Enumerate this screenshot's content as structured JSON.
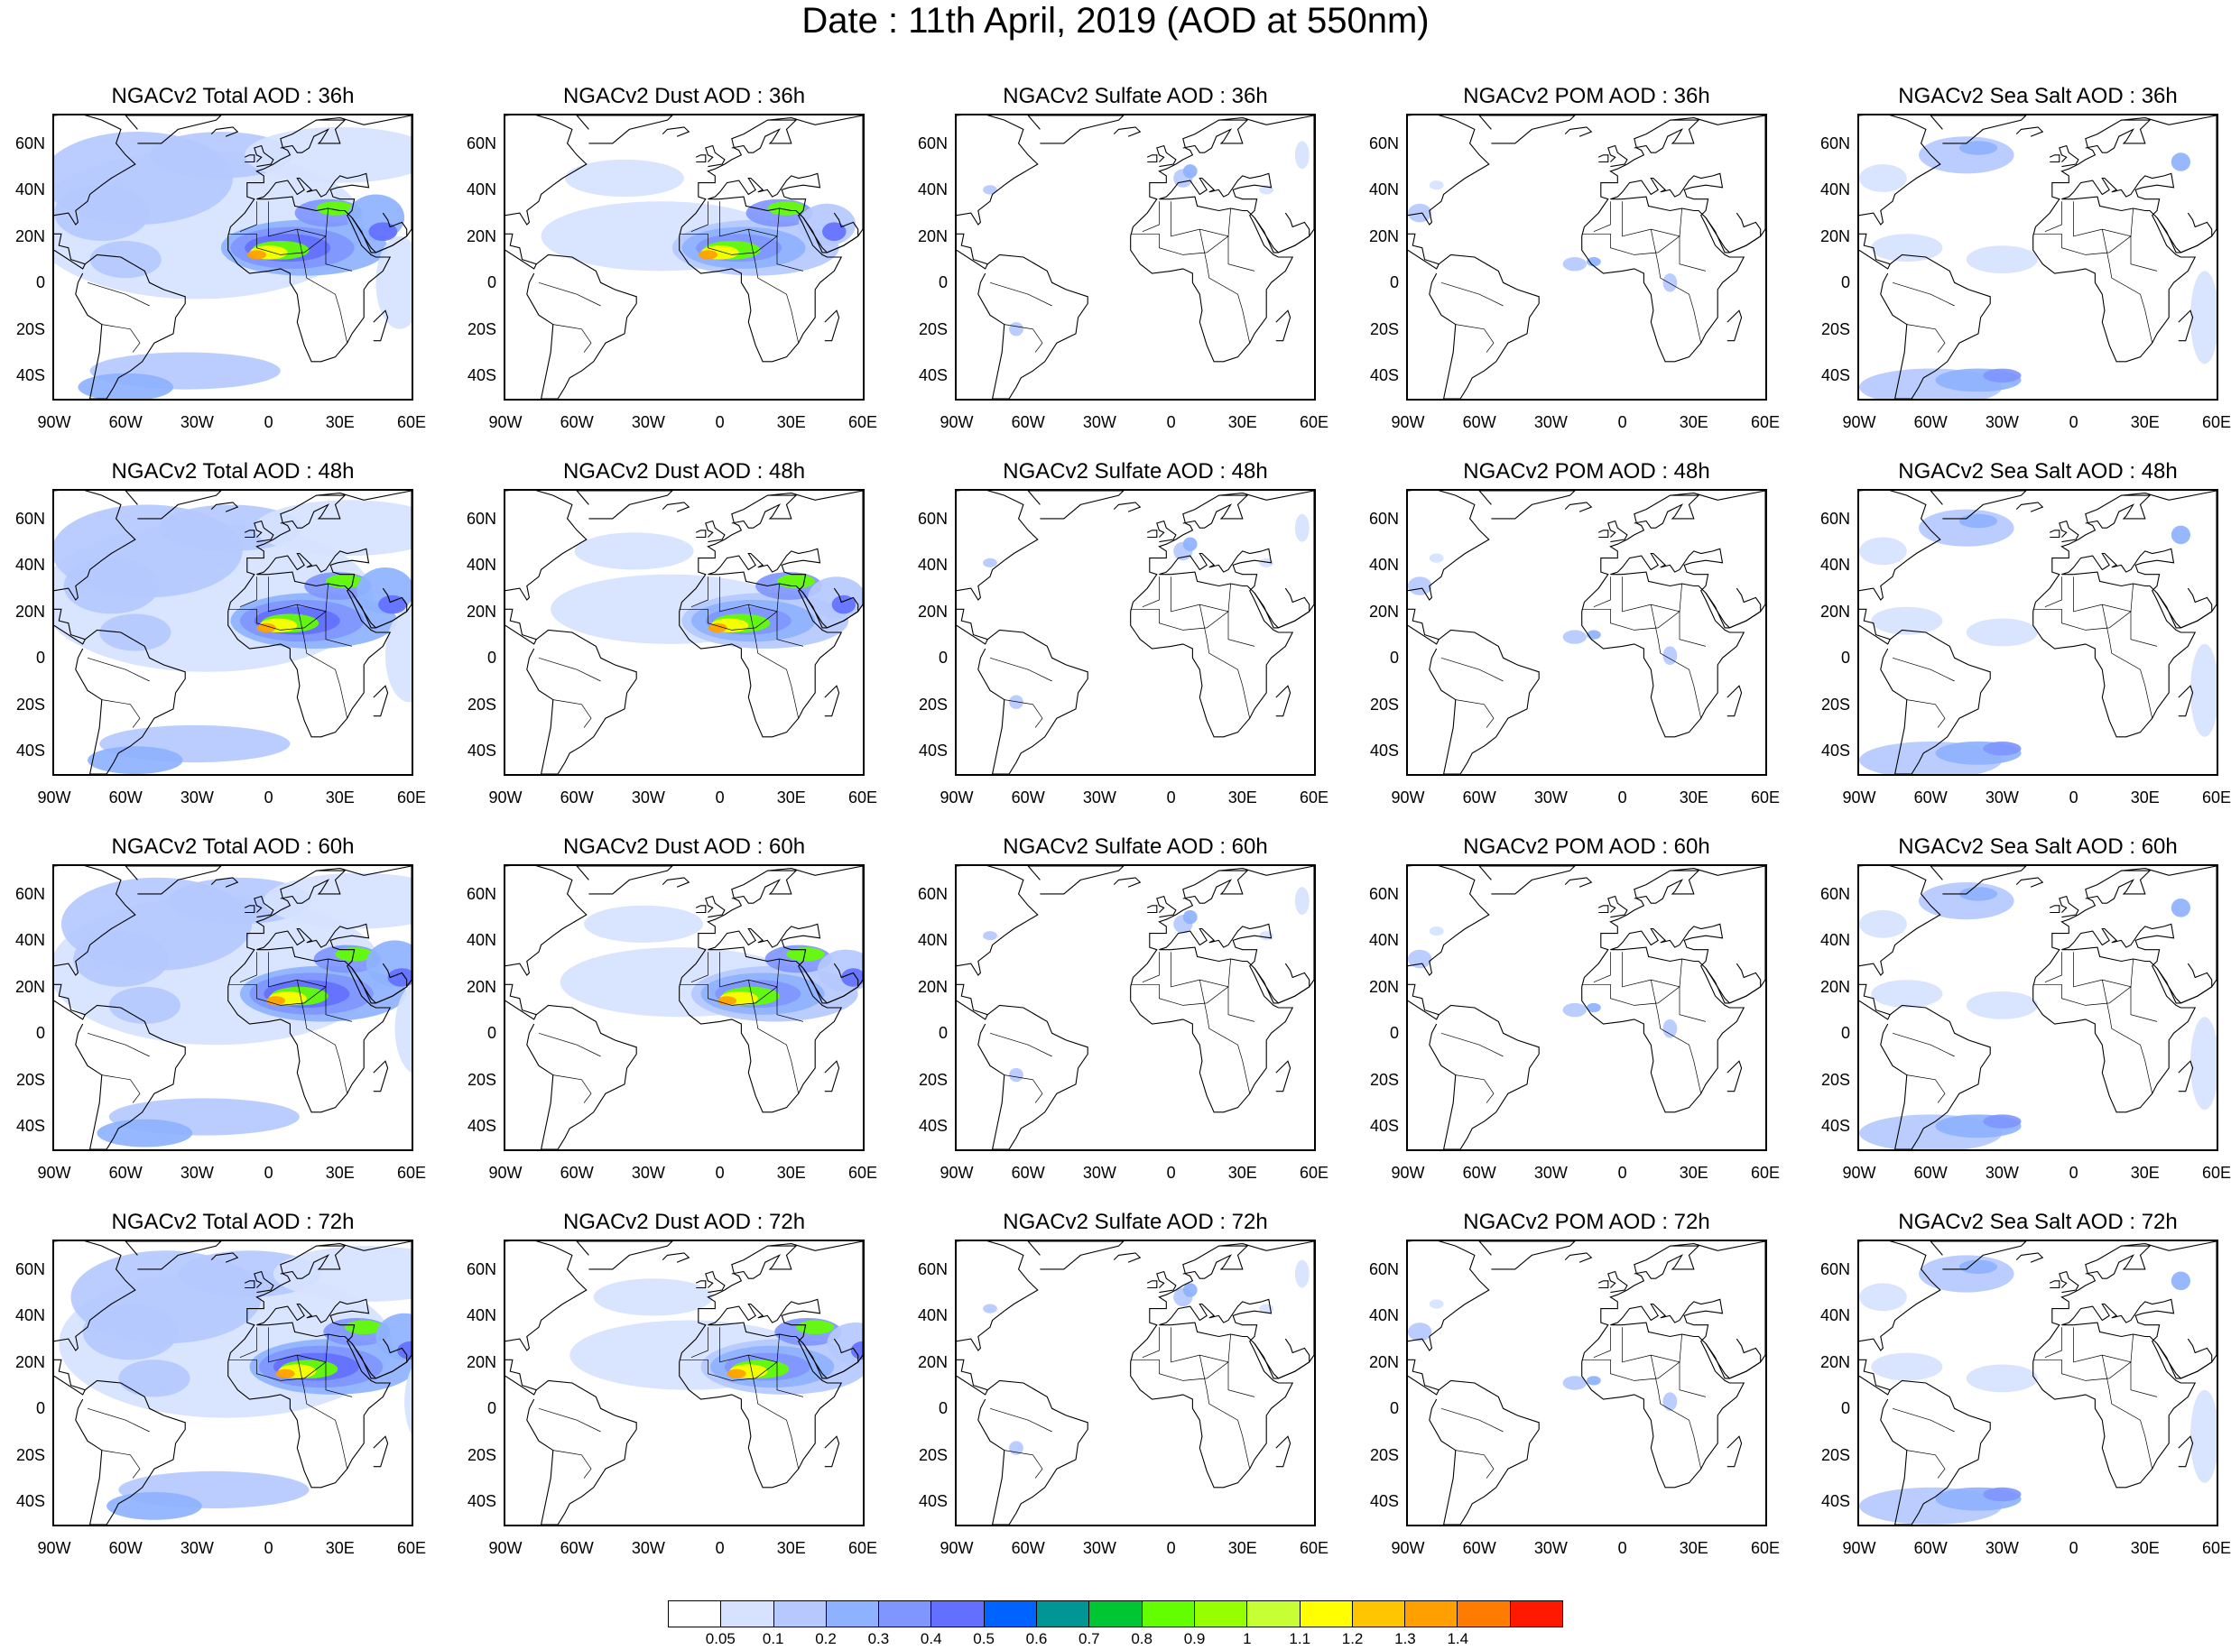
{
  "title": "Date : 11th April, 2019 (AOD at 550nm)",
  "map": {
    "lat_labels": [
      "60N",
      "40N",
      "20N",
      "0",
      "20S",
      "40S"
    ],
    "lat_values": [
      60,
      40,
      20,
      0,
      -20,
      -40
    ],
    "lon_labels": [
      "90W",
      "60W",
      "30W",
      "0",
      "30E",
      "60E"
    ],
    "lon_values": [
      -90,
      -60,
      -30,
      0,
      30,
      60
    ],
    "lon_range": [
      -90,
      60
    ],
    "lat_range": [
      -50,
      72
    ]
  },
  "panels": [
    [
      {
        "title": "NGACv2 Total AOD : 36h",
        "species": "total"
      },
      {
        "title": "NGACv2 Dust AOD : 36h",
        "species": "dust"
      },
      {
        "title": "NGACv2 Sulfate AOD : 36h",
        "species": "sulfate"
      },
      {
        "title": "NGACv2 POM AOD : 36h",
        "species": "pom"
      },
      {
        "title": "NGACv2 Sea Salt AOD : 36h",
        "species": "seasalt"
      }
    ],
    [
      {
        "title": "NGACv2 Total AOD : 48h",
        "species": "total"
      },
      {
        "title": "NGACv2 Dust AOD : 48h",
        "species": "dust"
      },
      {
        "title": "NGACv2 Sulfate AOD : 48h",
        "species": "sulfate"
      },
      {
        "title": "NGACv2 POM AOD : 48h",
        "species": "pom"
      },
      {
        "title": "NGACv2 Sea Salt AOD : 48h",
        "species": "seasalt"
      }
    ],
    [
      {
        "title": "NGACv2 Total AOD : 60h",
        "species": "total"
      },
      {
        "title": "NGACv2 Dust AOD : 60h",
        "species": "dust"
      },
      {
        "title": "NGACv2 Sulfate AOD : 60h",
        "species": "sulfate"
      },
      {
        "title": "NGACv2 POM AOD : 60h",
        "species": "pom"
      },
      {
        "title": "NGACv2 Sea Salt AOD : 60h",
        "species": "seasalt"
      }
    ],
    [
      {
        "title": "NGACv2 Total AOD : 72h",
        "species": "total"
      },
      {
        "title": "NGACv2 Dust AOD : 72h",
        "species": "dust"
      },
      {
        "title": "NGACv2 Sulfate AOD : 72h",
        "species": "sulfate"
      },
      {
        "title": "NGACv2 POM AOD : 72h",
        "species": "pom"
      },
      {
        "title": "NGACv2 Sea Salt  AOD : 72h",
        "species": "seasalt"
      }
    ]
  ],
  "colorbar": {
    "colors": [
      "#ffffff",
      "#d6e2ff",
      "#b5c9ff",
      "#8eb2ff",
      "#7f96ff",
      "#6370ff",
      "#0063ff",
      "#009696",
      "#00c633",
      "#63ff00",
      "#96ff00",
      "#c6ff33",
      "#ffff00",
      "#ffc600",
      "#ffa000",
      "#ff7c00",
      "#ff1900"
    ],
    "labels": [
      "0.05",
      "0.1",
      "0.2",
      "0.3",
      "0.4",
      "0.5",
      "0.6",
      "0.7",
      "0.8",
      "0.9",
      "1",
      "1.1",
      "1.2",
      "1.3",
      "1.4"
    ]
  }
}
